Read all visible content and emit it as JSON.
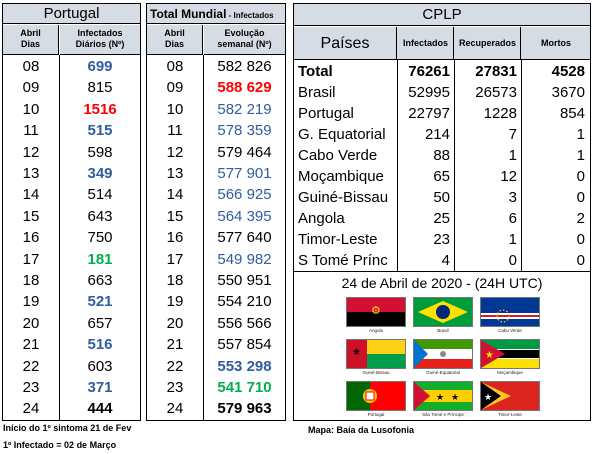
{
  "portugal": {
    "title": "Portugal",
    "col1": "Abril\nDias",
    "col2": "Infectados\nDiários (Nº)",
    "rows": [
      {
        "day": "08",
        "val": "699",
        "color": "#2f5d9e",
        "bold": true
      },
      {
        "day": "09",
        "val": "815",
        "color": "#000000",
        "bold": false
      },
      {
        "day": "10",
        "val": "1516",
        "color": "#ff0000",
        "bold": true
      },
      {
        "day": "11",
        "val": "515",
        "color": "#2f5d9e",
        "bold": true
      },
      {
        "day": "12",
        "val": "598",
        "color": "#000000",
        "bold": false
      },
      {
        "day": "13",
        "val": "349",
        "color": "#2f5d9e",
        "bold": true
      },
      {
        "day": "14",
        "val": "514",
        "color": "#000000",
        "bold": false
      },
      {
        "day": "15",
        "val": "643",
        "color": "#000000",
        "bold": false
      },
      {
        "day": "16",
        "val": "750",
        "color": "#000000",
        "bold": false
      },
      {
        "day": "17",
        "val": "181",
        "color": "#00b050",
        "bold": true
      },
      {
        "day": "18",
        "val": "663",
        "color": "#000000",
        "bold": false
      },
      {
        "day": "19",
        "val": "521",
        "color": "#2f5d9e",
        "bold": true
      },
      {
        "day": "20",
        "val": "657",
        "color": "#000000",
        "bold": false
      },
      {
        "day": "21",
        "val": "516",
        "color": "#2f5d9e",
        "bold": true
      },
      {
        "day": "22",
        "val": "603",
        "color": "#000000",
        "bold": false
      },
      {
        "day": "23",
        "val": "371",
        "color": "#2f5d9e",
        "bold": true
      },
      {
        "day": "24",
        "val": "444",
        "color": "#000000",
        "bold": true
      }
    ]
  },
  "mundial": {
    "title": "Total Mundial",
    "subtitle": " - Infectados",
    "col1": "Abril\nDias",
    "col2": "Evolução\nsemanal (Nº)",
    "rows": [
      {
        "day": "08",
        "val": "582 826",
        "color": "#000000",
        "bold": false
      },
      {
        "day": "09",
        "val": "588 629",
        "color": "#ff0000",
        "bold": true
      },
      {
        "day": "10",
        "val": "582 219",
        "color": "#2f5d9e",
        "bold": false
      },
      {
        "day": "11",
        "val": "578 359",
        "color": "#2f5d9e",
        "bold": false
      },
      {
        "day": "12",
        "val": "579 464",
        "color": "#000000",
        "bold": false
      },
      {
        "day": "13",
        "val": "577 901",
        "color": "#2f5d9e",
        "bold": false
      },
      {
        "day": "14",
        "val": "566 925",
        "color": "#2f5d9e",
        "bold": false
      },
      {
        "day": "15",
        "val": "564 395",
        "color": "#2f5d9e",
        "bold": false
      },
      {
        "day": "16",
        "val": "577 640",
        "color": "#000000",
        "bold": false
      },
      {
        "day": "17",
        "val": "549 982",
        "color": "#2f5d9e",
        "bold": false
      },
      {
        "day": "18",
        "val": "550 951",
        "color": "#000000",
        "bold": false
      },
      {
        "day": "19",
        "val": "554 210",
        "color": "#000000",
        "bold": false
      },
      {
        "day": "20",
        "val": "556 566",
        "color": "#000000",
        "bold": false
      },
      {
        "day": "21",
        "val": "557 854",
        "color": "#000000",
        "bold": false
      },
      {
        "day": "22",
        "val": "553 298",
        "color": "#2f5d9e",
        "bold": true
      },
      {
        "day": "23",
        "val": "541 710",
        "color": "#00b050",
        "bold": true
      },
      {
        "day": "24",
        "val": "579 963",
        "color": "#000000",
        "bold": true
      }
    ]
  },
  "cplp": {
    "title": "CPLP",
    "headers": [
      "Países",
      "Infectados",
      "Recuperados",
      "Mortos"
    ],
    "rows": [
      {
        "pais": "Total",
        "inf": "76261",
        "rec": "27831",
        "mor": "4528",
        "bold": true
      },
      {
        "pais": "Brasil",
        "inf": "52995",
        "rec": "26573",
        "mor": "3670",
        "bold": false
      },
      {
        "pais": "Portugal",
        "inf": "22797",
        "rec": "1228",
        "mor": "854",
        "bold": false
      },
      {
        "pais": "G. Equatorial",
        "inf": "214",
        "rec": "7",
        "mor": "1",
        "bold": false
      },
      {
        "pais": "Cabo Verde",
        "inf": "88",
        "rec": "1",
        "mor": "1",
        "bold": false
      },
      {
        "pais": "Moçambique",
        "inf": "65",
        "rec": "12",
        "mor": "0",
        "bold": false
      },
      {
        "pais": "Guiné-Bissau",
        "inf": "50",
        "rec": "3",
        "mor": "0",
        "bold": false
      },
      {
        "pais": "Angola",
        "inf": "25",
        "rec": "6",
        "mor": "2",
        "bold": false
      },
      {
        "pais": "Timor-Leste",
        "inf": "23",
        "rec": "1",
        "mor": "0",
        "bold": false
      },
      {
        "pais": "S Tomé Prínc",
        "inf": "4",
        "rec": "0",
        "mor": "0",
        "bold": false
      }
    ],
    "date_line": "24 de Abril de 2020 - (24H UTC)",
    "flags": [
      {
        "icon": "angola-flag-icon",
        "label": "Angola"
      },
      {
        "icon": "brazil-flag-icon",
        "label": "Brasil"
      },
      {
        "icon": "cape-verde-flag-icon",
        "label": "Cabo Verde"
      },
      {
        "icon": "guinea-bissau-flag-icon",
        "label": "Guiné-Bissau"
      },
      {
        "icon": "equatorial-guinea-flag-icon",
        "label": "Guiné-Equatorial"
      },
      {
        "icon": "mozambique-flag-icon",
        "label": "Moçambique"
      },
      {
        "icon": "portugal-flag-icon",
        "label": "Portugal"
      },
      {
        "icon": "sao-tome-flag-icon",
        "label": "São Tomé e Príncipe"
      },
      {
        "icon": "timor-leste-flag-icon",
        "label": "Timor-Leste"
      }
    ]
  },
  "footer": {
    "line1": "Início do 1º sintoma 21 de Fev",
    "line2": "1º Infectado = 02 de Março",
    "map_caption": "Mapa: Baía da Lusofonia"
  }
}
